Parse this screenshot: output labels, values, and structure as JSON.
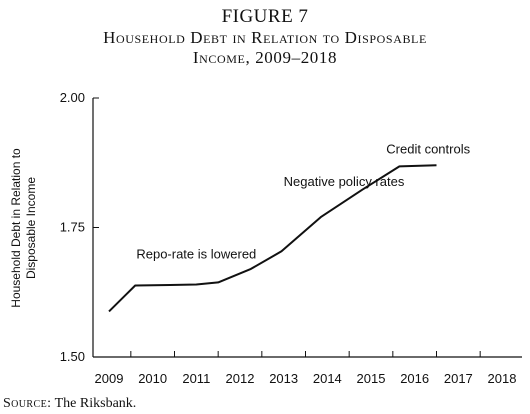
{
  "figure": {
    "label": "FIGURE 7",
    "title_line1": "Household Debt in Relation to Disposable",
    "title_line2": "Income, 2009–2018"
  },
  "source": {
    "label": "Source:",
    "text": "The Riksbank."
  },
  "chart_data": {
    "type": "line",
    "ylabel_line1": "Household Debt in Relation to",
    "ylabel_line2": "Disposable Income",
    "xlabel": "",
    "ylim": [
      1.5,
      2.0
    ],
    "yticks": [
      1.5,
      1.75,
      2.0
    ],
    "ytick_labels": [
      "1.50",
      "1.75",
      "2.00"
    ],
    "grid": false,
    "x": [
      2009,
      2010,
      2011,
      2012,
      2013,
      2014,
      2015,
      2016,
      2017,
      2018
    ],
    "xtick_labels": [
      "2009",
      "2010",
      "2011",
      "2012",
      "2013",
      "2014",
      "2015",
      "2016",
      "2017",
      "2018"
    ],
    "series": [
      {
        "points": [
          [
            2009.0,
            1.588
          ],
          [
            2009.6,
            1.638
          ],
          [
            2010.4,
            1.639
          ],
          [
            2011.0,
            1.64
          ],
          [
            2011.5,
            1.644
          ],
          [
            2012.25,
            1.67
          ],
          [
            2012.95,
            1.704
          ],
          [
            2013.85,
            1.77
          ],
          [
            2014.8,
            1.823
          ],
          [
            2015.65,
            1.868
          ],
          [
            2016.5,
            1.87
          ]
        ]
      }
    ],
    "annotations": [
      {
        "text": "Repo-rate is lowered",
        "x": 2011.0,
        "y": 1.69,
        "anchor": "middle"
      },
      {
        "text": "Negative policy rates",
        "x": 2013.0,
        "y": 1.83,
        "anchor": "start"
      },
      {
        "text": "Credit controls",
        "x": 2015.35,
        "y": 1.893,
        "anchor": "start"
      }
    ]
  }
}
